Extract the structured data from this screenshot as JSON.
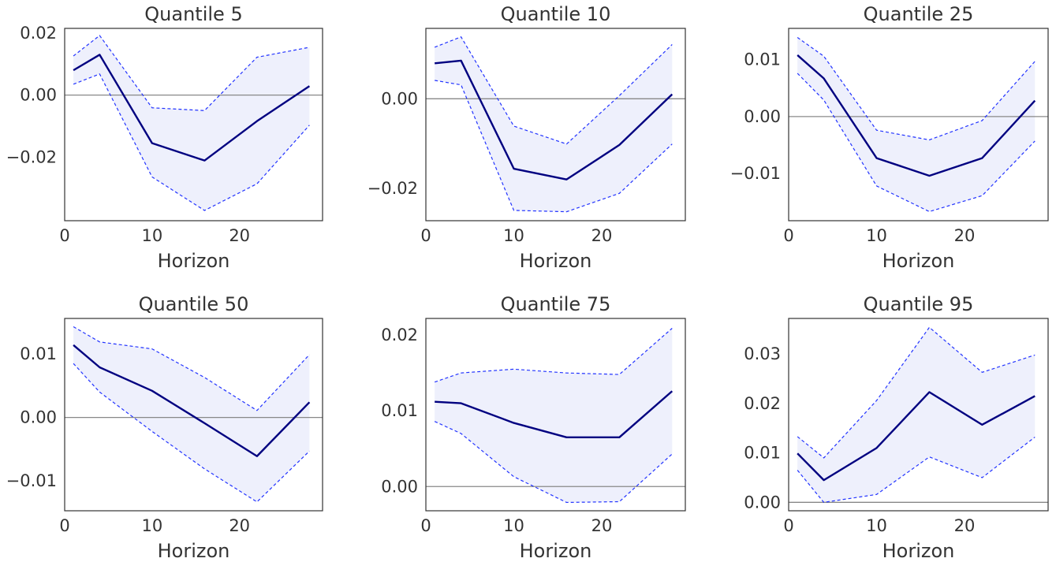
{
  "chart_data": [
    {
      "type": "line",
      "title": "Quantile 5",
      "xlabel": "Horizon",
      "xlim": [
        0,
        29.5
      ],
      "ylim": [
        -0.0405,
        0.0215
      ],
      "x_ticks": [
        0,
        10,
        20
      ],
      "y_ticks": [
        0.02,
        0.0,
        -0.02
      ],
      "y_tick_labels": [
        "0.02",
        "0.00",
        "−0.02"
      ],
      "x": [
        1,
        4,
        10,
        16,
        22,
        28
      ],
      "series": [
        {
          "role": "estimate",
          "values": [
            0.008,
            0.013,
            -0.0155,
            -0.0211,
            -0.0084,
            0.0029
          ]
        },
        {
          "role": "upper",
          "values": [
            0.0126,
            0.0192,
            -0.0041,
            -0.005,
            0.0122,
            0.0154
          ]
        },
        {
          "role": "lower",
          "values": [
            0.0035,
            0.0068,
            -0.0264,
            -0.0372,
            -0.0286,
            -0.0097
          ]
        }
      ]
    },
    {
      "type": "line",
      "title": "Quantile 10",
      "xlabel": "Horizon",
      "xlim": [
        0,
        29.5
      ],
      "ylim": [
        -0.0272,
        0.0157
      ],
      "x_ticks": [
        0,
        10,
        20
      ],
      "y_ticks": [
        0.0,
        -0.02
      ],
      "y_tick_labels": [
        "0.00",
        "−0.02"
      ],
      "x": [
        1,
        4,
        10,
        16,
        22,
        28
      ],
      "series": [
        {
          "role": "estimate",
          "values": [
            0.0079,
            0.0085,
            -0.0156,
            -0.018,
            -0.0103,
            0.001
          ]
        },
        {
          "role": "upper",
          "values": [
            0.0115,
            0.0138,
            -0.0061,
            -0.0101,
            0.0007,
            0.0121
          ]
        },
        {
          "role": "lower",
          "values": [
            0.0041,
            0.0031,
            -0.0249,
            -0.0252,
            -0.0211,
            -0.0101
          ]
        }
      ]
    },
    {
      "type": "line",
      "title": "Quantile 25",
      "xlabel": "Horizon",
      "xlim": [
        0,
        29.5
      ],
      "ylim": [
        -0.0183,
        0.0155
      ],
      "x_ticks": [
        0,
        10,
        20
      ],
      "y_ticks": [
        0.01,
        0.0,
        -0.01
      ],
      "y_tick_labels": [
        "0.01",
        "0.00",
        "−0.01"
      ],
      "x": [
        1,
        4,
        10,
        16,
        22,
        28
      ],
      "series": [
        {
          "role": "estimate",
          "values": [
            0.0108,
            0.0067,
            -0.0073,
            -0.0104,
            -0.0073,
            0.0028
          ]
        },
        {
          "role": "upper",
          "values": [
            0.0139,
            0.0106,
            -0.0024,
            -0.0041,
            -0.0007,
            0.0097
          ]
        },
        {
          "role": "lower",
          "values": [
            0.0076,
            0.0029,
            -0.0122,
            -0.0167,
            -0.0139,
            -0.0043
          ]
        }
      ]
    },
    {
      "type": "line",
      "title": "Quantile 50",
      "xlabel": "Horizon",
      "xlim": [
        0,
        29.5
      ],
      "ylim": [
        -0.0147,
        0.0156
      ],
      "x_ticks": [
        0,
        10,
        20
      ],
      "y_ticks": [
        0.01,
        0.0,
        -0.01
      ],
      "y_tick_labels": [
        "0.01",
        "0.00",
        "−0.01"
      ],
      "x": [
        1,
        4,
        10,
        16,
        22,
        28
      ],
      "series": [
        {
          "role": "estimate",
          "values": [
            0.0114,
            0.0079,
            0.0042,
            -0.0009,
            -0.0061,
            0.0024
          ]
        },
        {
          "role": "upper",
          "values": [
            0.0143,
            0.0119,
            0.0108,
            0.0063,
            0.0011,
            0.0099
          ]
        },
        {
          "role": "lower",
          "values": [
            0.0085,
            0.004,
            -0.0022,
            -0.0081,
            -0.0133,
            -0.0053
          ]
        }
      ]
    },
    {
      "type": "line",
      "title": "Quantile 75",
      "xlabel": "Horizon",
      "xlim": [
        0,
        29.5
      ],
      "ylim": [
        -0.0032,
        0.0222
      ],
      "x_ticks": [
        0,
        10,
        20
      ],
      "y_ticks": [
        0.02,
        0.01,
        0.0
      ],
      "y_tick_labels": [
        "0.02",
        "0.01",
        "0.00"
      ],
      "x": [
        1,
        4,
        10,
        16,
        22,
        28
      ],
      "series": [
        {
          "role": "estimate",
          "values": [
            0.0112,
            0.011,
            0.0084,
            0.0065,
            0.0065,
            0.0126
          ]
        },
        {
          "role": "upper",
          "values": [
            0.0138,
            0.015,
            0.0155,
            0.015,
            0.0148,
            0.0209
          ]
        },
        {
          "role": "lower",
          "values": [
            0.0086,
            0.007,
            0.0013,
            -0.0021,
            -0.002,
            0.0043
          ]
        }
      ]
    },
    {
      "type": "line",
      "title": "Quantile 95",
      "xlabel": "Horizon",
      "xlim": [
        0,
        29.5
      ],
      "ylim": [
        -0.0017,
        0.0372
      ],
      "x_ticks": [
        0,
        10,
        20
      ],
      "y_ticks": [
        0.03,
        0.02,
        0.01,
        0.0
      ],
      "y_tick_labels": [
        "0.03",
        "0.02",
        "0.01",
        "0.00"
      ],
      "x": [
        1,
        4,
        10,
        16,
        22,
        28
      ],
      "series": [
        {
          "role": "estimate",
          "values": [
            0.0099,
            0.0045,
            0.011,
            0.0223,
            0.0157,
            0.0215
          ]
        },
        {
          "role": "upper",
          "values": [
            0.0133,
            0.009,
            0.0206,
            0.0354,
            0.0263,
            0.0298
          ]
        },
        {
          "role": "lower",
          "values": [
            0.0065,
            0.0,
            0.0016,
            0.0092,
            0.005,
            0.0132
          ]
        }
      ]
    }
  ]
}
